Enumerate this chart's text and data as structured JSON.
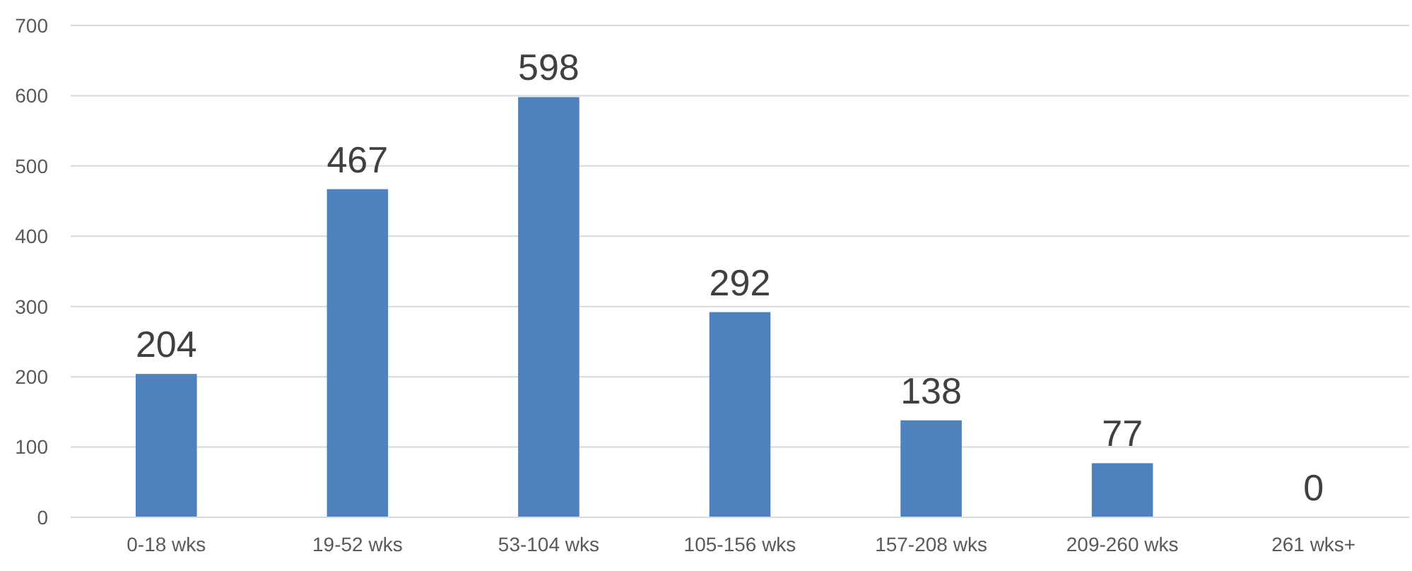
{
  "chart_data": {
    "type": "bar",
    "categories": [
      "0-18 wks",
      "19-52 wks",
      "53-104 wks",
      "105-156 wks",
      "157-208 wks",
      "209-260 wks",
      "261 wks+"
    ],
    "values": [
      204,
      467,
      598,
      292,
      138,
      77,
      0
    ],
    "color": "#4f81bd",
    "ylim": [
      0,
      700
    ],
    "yticks": [
      0,
      100,
      200,
      300,
      400,
      500,
      600,
      700
    ],
    "grid": "y",
    "data_labels": true
  }
}
